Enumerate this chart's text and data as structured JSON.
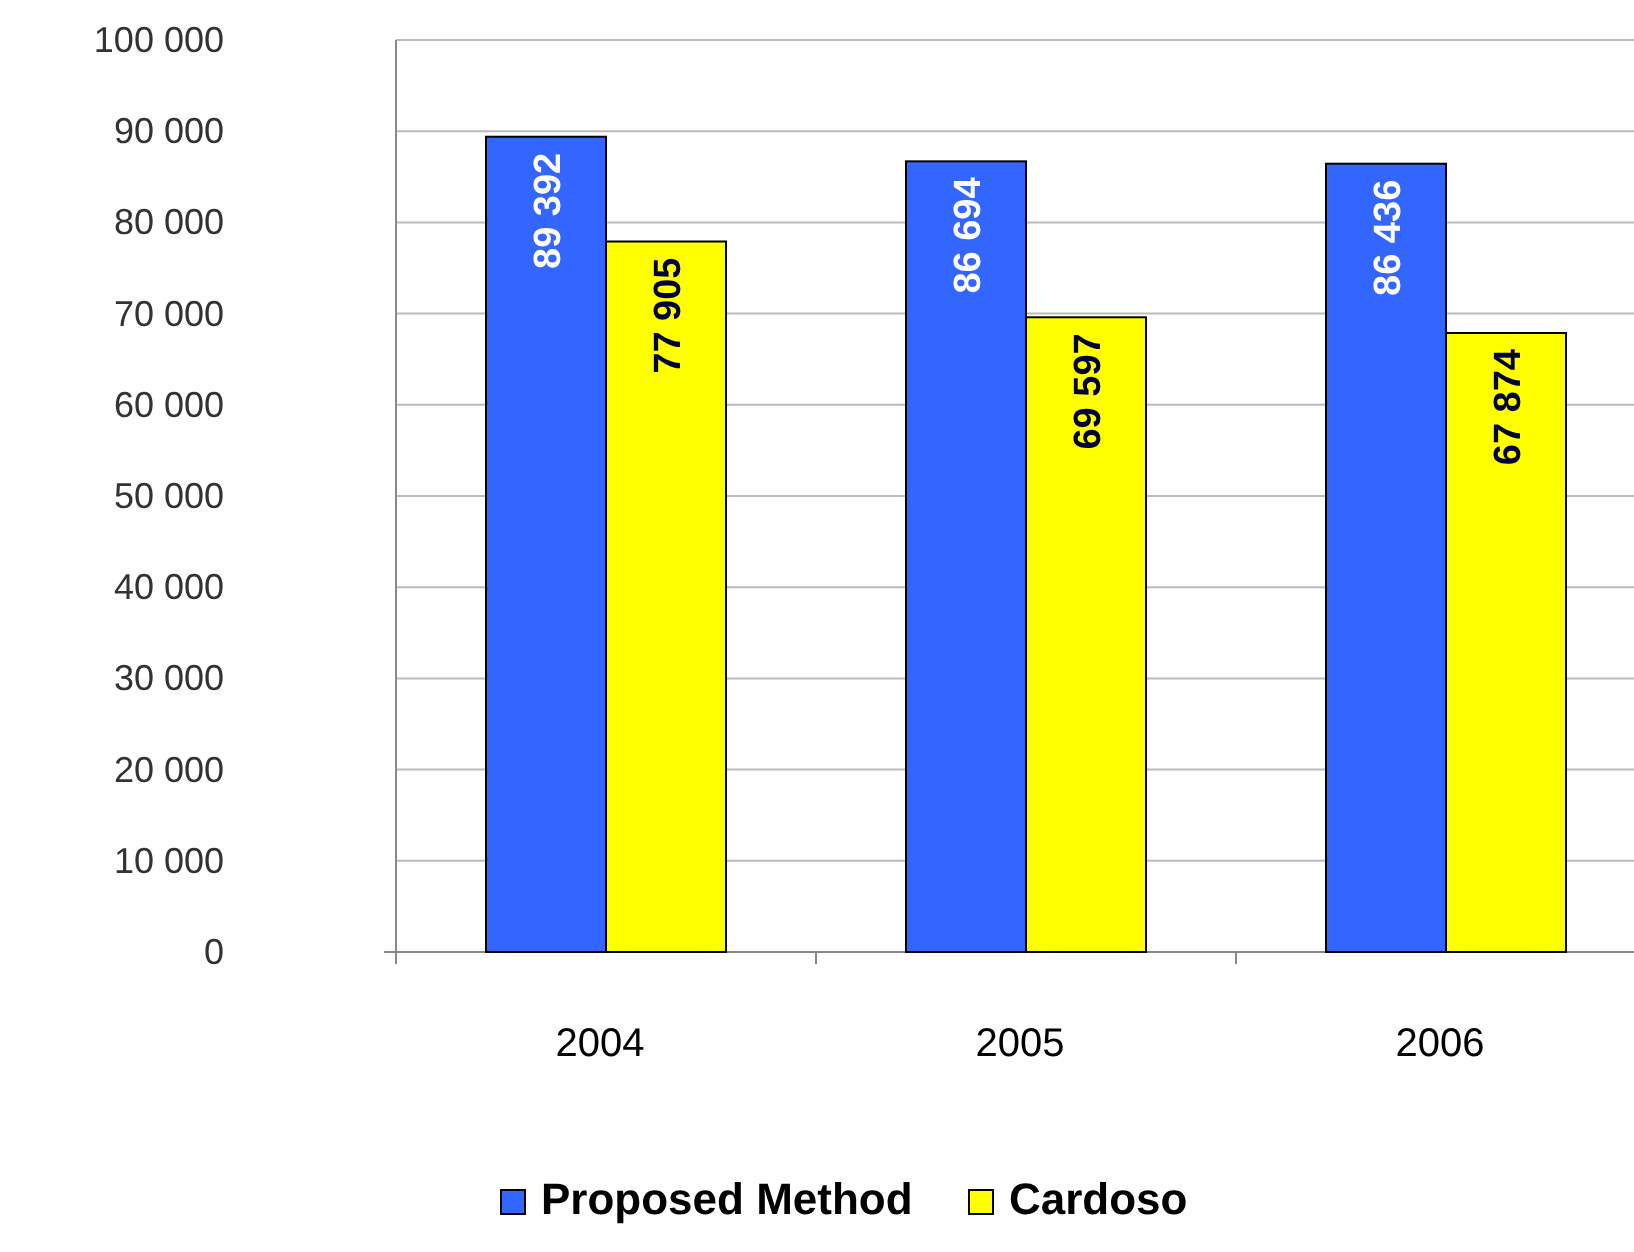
{
  "chart_data": {
    "type": "bar",
    "categories": [
      "2004",
      "2005",
      "2006"
    ],
    "series": [
      {
        "name": "Proposed Method",
        "color": "#3366ff",
        "values": [
          89392,
          86694,
          86436
        ],
        "value_labels": [
          "89 392",
          "86 694",
          "86 436"
        ]
      },
      {
        "name": "Cardoso",
        "color": "#ffff00",
        "values": [
          77905,
          69597,
          67874
        ],
        "value_labels": [
          "77 905",
          "69 597",
          "67 874"
        ]
      }
    ],
    "ylim": [
      0,
      100000
    ],
    "yticks": [
      0,
      {
        "value": 10000,
        "label": "10 000"
      },
      {
        "value": 20000,
        "label": "20 000"
      },
      {
        "value": 30000,
        "label": "30 000"
      },
      {
        "value": 40000,
        "label": "40 000"
      },
      {
        "value": 50000,
        "label": "50 000"
      },
      {
        "value": 60000,
        "label": "60 000"
      },
      {
        "value": 70000,
        "label": "70 000"
      },
      {
        "value": 80000,
        "label": "80 000"
      },
      {
        "value": 90000,
        "label": "90 000"
      },
      {
        "value": 100000,
        "label": "100 000"
      }
    ],
    "grid": "y",
    "legend": "bottom"
  }
}
